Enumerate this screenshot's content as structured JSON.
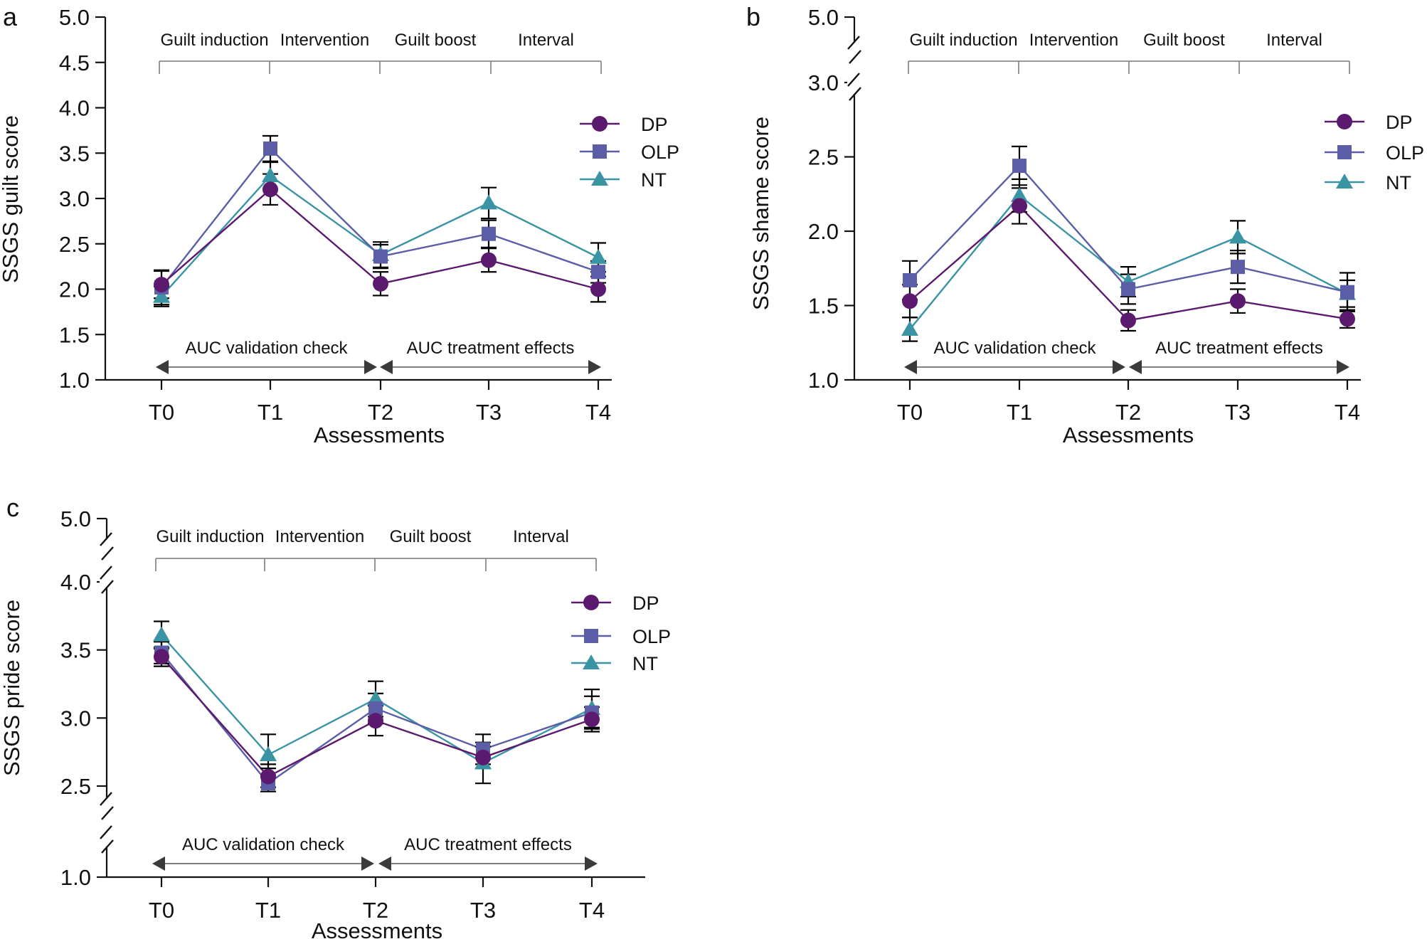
{
  "colors": {
    "axis": "#111111",
    "bracket": "#8a8a8a",
    "auc_line": "#555555",
    "error_bar": "#000000"
  },
  "chart_data": [
    {
      "id": "a",
      "type": "line",
      "panel_label": "a",
      "xlabel": "Assessments",
      "ylabel": "SSGS guilt score",
      "categories": [
        "T0",
        "T1",
        "T2",
        "T3",
        "T4"
      ],
      "ylim": [
        1.0,
        5.0
      ],
      "y_ticks": [
        1.0,
        1.5,
        2.0,
        2.5,
        3.0,
        3.5,
        4.0,
        4.5,
        5.0
      ],
      "y_tick_labels": [
        "1.0",
        "1.5",
        "2.0",
        "2.5",
        "3.0",
        "3.5",
        "4.0",
        "4.5",
        "5.0"
      ],
      "phases": [
        "Guilt induction",
        "Intervention",
        "Guilt boost",
        "Interval"
      ],
      "auc_labels": [
        "AUC validation check",
        "AUC treatment effects"
      ],
      "series": [
        {
          "name": "DP",
          "marker": "circle",
          "color": "#5b1a6e",
          "values": [
            2.05,
            3.1,
            2.06,
            2.32,
            2.0
          ],
          "errors": [
            0.15,
            0.17,
            0.13,
            0.13,
            0.14
          ]
        },
        {
          "name": "OLP",
          "marker": "square",
          "color": "#5b5ea6",
          "values": [
            2.02,
            3.55,
            2.36,
            2.61,
            2.19
          ],
          "errors": [
            0.19,
            0.14,
            0.13,
            0.15,
            0.12
          ]
        },
        {
          "name": "NT",
          "marker": "triangle",
          "color": "#3a94a4",
          "values": [
            1.92,
            3.25,
            2.38,
            2.95,
            2.35
          ],
          "errors": [
            0.11,
            0.15,
            0.14,
            0.17,
            0.16
          ]
        }
      ]
    },
    {
      "id": "b",
      "type": "line",
      "panel_label": "b",
      "xlabel": "Assessments",
      "ylabel": "SSGS shame score",
      "categories": [
        "T0",
        "T1",
        "T2",
        "T3",
        "T4"
      ],
      "ylim": [
        1.0,
        5.0
      ],
      "axis_break": [
        3.0,
        5.0
      ],
      "y_ticks": [
        1.0,
        1.5,
        2.0,
        2.5,
        3.0,
        5.0
      ],
      "y_tick_labels": [
        "1.0",
        "1.5",
        "2.0",
        "2.5",
        "3.0",
        "5.0"
      ],
      "phases": [
        "Guilt induction",
        "Intervention",
        "Guilt boost",
        "Interval"
      ],
      "auc_labels": [
        "AUC validation check",
        "AUC treatment effects"
      ],
      "series": [
        {
          "name": "DP",
          "marker": "circle",
          "color": "#5b1a6e",
          "values": [
            1.53,
            2.17,
            1.4,
            1.53,
            1.41
          ],
          "errors": [
            0.11,
            0.12,
            0.07,
            0.08,
            0.06
          ]
        },
        {
          "name": "OLP",
          "marker": "square",
          "color": "#5b5ea6",
          "values": [
            1.67,
            2.44,
            1.61,
            1.76,
            1.59
          ],
          "errors": [
            0.13,
            0.13,
            0.1,
            0.11,
            0.13
          ]
        },
        {
          "name": "NT",
          "marker": "triangle",
          "color": "#3a94a4",
          "values": [
            1.34,
            2.24,
            1.66,
            1.96,
            1.58
          ],
          "errors": [
            0.08,
            0.11,
            0.1,
            0.11,
            0.09
          ]
        }
      ]
    },
    {
      "id": "c",
      "type": "line",
      "panel_label": "c",
      "xlabel": "Assessments",
      "ylabel": "SSGS pride score",
      "categories": [
        "T0",
        "T1",
        "T2",
        "T3",
        "T4"
      ],
      "ylim": [
        1.0,
        5.0
      ],
      "axis_breaks": [
        [
          1.0,
          2.5
        ],
        [
          4.0,
          5.0
        ]
      ],
      "y_ticks": [
        1.0,
        2.5,
        3.0,
        3.5,
        4.0,
        5.0
      ],
      "y_tick_labels": [
        "1.0",
        "2.5",
        "3.0",
        "3.5",
        "4.0",
        "5.0"
      ],
      "phases": [
        "Guilt induction",
        "Intervention",
        "Guilt boost",
        "Interval"
      ],
      "auc_labels": [
        "AUC validation check",
        "AUC treatment effects"
      ],
      "series": [
        {
          "name": "DP",
          "marker": "circle",
          "color": "#5b1a6e",
          "values": [
            3.45,
            2.57,
            2.98,
            2.71,
            2.99
          ],
          "errors": [
            0.07,
            0.09,
            0.11,
            0.08,
            0.09
          ]
        },
        {
          "name": "OLP",
          "marker": "square",
          "color": "#5b5ea6",
          "values": [
            3.48,
            2.52,
            3.07,
            2.77,
            3.04
          ],
          "errors": [
            0.08,
            0.11,
            0.11,
            0.11,
            0.12
          ]
        },
        {
          "name": "NT",
          "marker": "triangle",
          "color": "#3a94a4",
          "values": [
            3.61,
            2.73,
            3.14,
            2.67,
            3.07
          ],
          "errors": [
            0.1,
            0.15,
            0.13,
            0.15,
            0.14
          ]
        }
      ]
    }
  ]
}
